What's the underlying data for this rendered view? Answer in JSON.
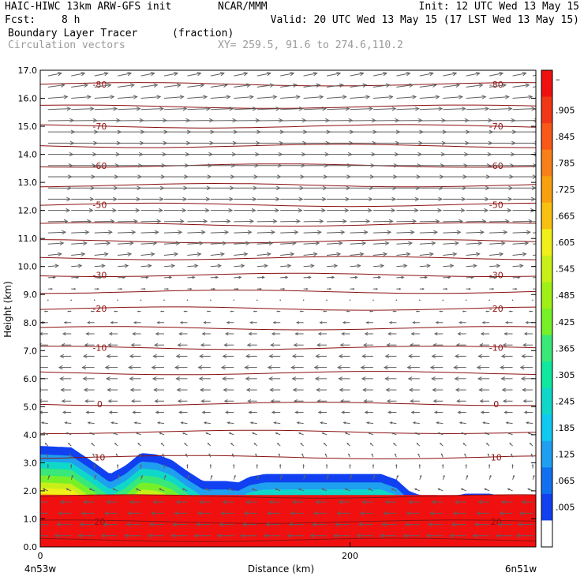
{
  "header": {
    "model": "HAIC-HIWC 13km ARW-GFS init",
    "org": "NCAR/MMM",
    "init": "Init: 12 UTC Wed 13 May 15",
    "fcst_label": "Fcst:",
    "fcst_value": "8 h",
    "valid": "Valid: 20 UTC Wed 13 May 15 (17 LST Wed 13 May 15)",
    "field": "Boundary Layer Tracer",
    "units": "(fraction)",
    "vectors": "Circulation vectors",
    "xy": "XY= 259.5, 91.6 to 274.6,110.2"
  },
  "chart_data": {
    "type": "heatmap",
    "ylabel": "Height (km)",
    "xlabel": "Distance (km)",
    "x_start_label": "4n53w",
    "x_end_label": "6n51w",
    "ylim": [
      0,
      17
    ],
    "yticks": [
      "0.0",
      "1.0",
      "2.0",
      "3.0",
      "4.0",
      "5.0",
      "6.0",
      "7.0",
      "8.0",
      "9.0",
      "10.0",
      "11.0",
      "12.0",
      "13.0",
      "14.0",
      "15.0",
      "16.0",
      "17.0"
    ],
    "xlim": [
      0,
      320
    ],
    "xticks": [
      {
        "value": 0,
        "label": "0"
      },
      {
        "value": 200,
        "label": "200"
      }
    ],
    "tracer_top_km": [
      [
        0,
        3.6
      ],
      [
        20,
        3.55
      ],
      [
        35,
        3.0
      ],
      [
        45,
        2.6
      ],
      [
        55,
        2.9
      ],
      [
        65,
        3.35
      ],
      [
        75,
        3.3
      ],
      [
        85,
        3.1
      ],
      [
        95,
        2.7
      ],
      [
        105,
        2.35
      ],
      [
        120,
        2.35
      ],
      [
        128,
        2.3
      ],
      [
        135,
        2.5
      ],
      [
        145,
        2.6
      ],
      [
        175,
        2.6
      ],
      [
        200,
        2.6
      ],
      [
        220,
        2.6
      ],
      [
        230,
        2.4
      ],
      [
        238,
        2.0
      ],
      [
        245,
        1.85
      ],
      [
        255,
        1.85
      ],
      [
        265,
        1.8
      ],
      [
        275,
        1.9
      ],
      [
        290,
        1.9
      ],
      [
        300,
        1.8
      ],
      [
        310,
        1.6
      ],
      [
        320,
        1.6
      ]
    ],
    "bands": [
      {
        "above_top_km": 0.0,
        "color": "#1040f0"
      },
      {
        "above_top_km": 0.3,
        "color": "#1e9ff0"
      },
      {
        "above_top_km": 0.55,
        "color": "#10d8c8"
      },
      {
        "above_top_km": 0.8,
        "color": "#38e878"
      },
      {
        "above_top_km": 1.05,
        "color": "#78f028"
      },
      {
        "above_top_km": 1.3,
        "color": "#c8f018"
      },
      {
        "above_top_km": 1.5,
        "color": "#f0f018"
      },
      {
        "above_top_km": 1.7,
        "color": "#f8c010"
      },
      {
        "above_top_km": 1.85,
        "color": "#f88018"
      },
      {
        "above_top_km": 2.0,
        "color": "#f03818"
      },
      {
        "above_top_km": 2.15,
        "color": "#f01010"
      }
    ],
    "core_top_km": 1.85,
    "core_color": "#f01010",
    "colorbar": {
      "labels": [
        "–",
        ".905",
        ".845",
        ".785",
        ".725",
        ".665",
        ".605",
        ".545",
        ".485",
        ".425",
        ".365",
        ".305",
        ".245",
        ".185",
        ".125",
        ".065",
        ".005"
      ],
      "colors": [
        "#f01010",
        "#f03818",
        "#f85818",
        "#f88018",
        "#f8a010",
        "#f8c010",
        "#f0f018",
        "#c8f018",
        "#a0f018",
        "#78f028",
        "#38e878",
        "#10e8a0",
        "#10d8c8",
        "#10c8f0",
        "#1e9ff0",
        "#1070f0",
        "#1040f0",
        "#ffffff"
      ]
    },
    "isotherms": [
      {
        "height_km": 16.5,
        "label": "-80",
        "left_label": true,
        "right_label": true
      },
      {
        "height_km": 15.7,
        "label": "",
        "left_label": false,
        "right_label": false
      },
      {
        "height_km": 15.0,
        "label": "-70",
        "left_label": true,
        "right_label": true
      },
      {
        "height_km": 14.3,
        "label": "",
        "left_label": false,
        "right_label": false
      },
      {
        "height_km": 13.6,
        "label": "-60",
        "left_label": true,
        "right_label": true
      },
      {
        "height_km": 12.9,
        "label": "",
        "left_label": false,
        "right_label": false
      },
      {
        "height_km": 12.2,
        "label": "-50",
        "left_label": true,
        "right_label": true
      },
      {
        "height_km": 11.5,
        "label": "",
        "left_label": false,
        "right_label": false
      },
      {
        "height_km": 10.9,
        "label": "",
        "left_label": false,
        "right_label": false
      },
      {
        "height_km": 10.3,
        "label": "",
        "left_label": false,
        "right_label": false
      },
      {
        "height_km": 9.7,
        "label": "-30",
        "left_label": true,
        "right_label": true
      },
      {
        "height_km": 9.1,
        "label": "",
        "left_label": false,
        "right_label": false
      },
      {
        "height_km": 8.5,
        "label": "-20",
        "left_label": true,
        "right_label": true
      },
      {
        "height_km": 7.8,
        "label": "",
        "left_label": false,
        "right_label": false
      },
      {
        "height_km": 7.1,
        "label": "-10",
        "left_label": true,
        "right_label": true
      },
      {
        "height_km": 6.2,
        "label": "",
        "left_label": false,
        "right_label": false
      },
      {
        "height_km": 5.1,
        "label": "0",
        "left_label": true,
        "right_label": true
      },
      {
        "height_km": 4.1,
        "label": "",
        "left_label": false,
        "right_label": false
      },
      {
        "height_km": 3.2,
        "label": "10",
        "left_label": true,
        "right_label": true
      },
      {
        "height_km": 1.8,
        "label": "",
        "left_label": false,
        "right_label": false
      },
      {
        "height_km": 0.9,
        "label": "20",
        "left_label": true,
        "right_label": true
      },
      {
        "height_km": 0.25,
        "label": "",
        "left_label": false,
        "right_label": false
      }
    ],
    "vector_rows_km": [
      16.8,
      16.4,
      16.0,
      15.6,
      15.2,
      14.8,
      14.4,
      14.0,
      13.6,
      13.2,
      12.8,
      12.4,
      12.0,
      11.6,
      11.2,
      10.8,
      10.4,
      10.0,
      9.6,
      9.2,
      8.8,
      8.4,
      8.0,
      7.6,
      7.2,
      6.8,
      6.4,
      6.0,
      5.6,
      5.2,
      4.8,
      4.4,
      4.0,
      3.6,
      3.2,
      2.8,
      2.4,
      2.0,
      1.6,
      1.2,
      0.8,
      0.4
    ],
    "vector_cols_km": [
      5,
      20,
      35,
      50,
      65,
      80,
      95,
      110,
      125,
      140,
      155,
      170,
      185,
      200,
      215,
      230,
      245,
      260,
      275,
      290,
      305,
      318
    ],
    "wind_profile": [
      {
        "height_km": 16.8,
        "u": 0.5,
        "w": 0.1
      },
      {
        "height_km": 15.0,
        "u": 1.0,
        "w": 0.0
      },
      {
        "height_km": 13.6,
        "u": 0.9,
        "w": 0.0
      },
      {
        "height_km": 12.0,
        "u": 0.8,
        "w": 0.0
      },
      {
        "height_km": 10.4,
        "u": 0.5,
        "w": 0.05
      },
      {
        "height_km": 9.2,
        "u": 0.15,
        "w": 0.0
      },
      {
        "height_km": 8.0,
        "u": -0.25,
        "w": 0.0
      },
      {
        "height_km": 6.4,
        "u": -0.45,
        "w": 0.0
      },
      {
        "height_km": 4.8,
        "u": -0.3,
        "w": 0.0
      },
      {
        "height_km": 3.6,
        "u": -0.1,
        "w": 0.1
      },
      {
        "height_km": 2.4,
        "u": 0.05,
        "w": 0.15
      },
      {
        "height_km": 1.6,
        "u": -0.4,
        "w": 0.0
      },
      {
        "height_km": 0.4,
        "u": -0.6,
        "w": 0.0
      }
    ],
    "colors": {
      "isotherm": "#8b1010",
      "vector": "#606060",
      "axis": "#000000"
    }
  }
}
